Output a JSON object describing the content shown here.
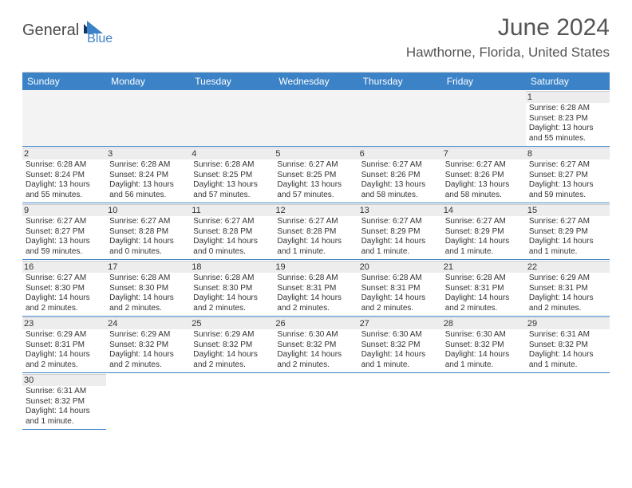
{
  "logo": {
    "main": "General",
    "sub": "Blue"
  },
  "title": "June 2024",
  "location": "Hawthorne, Florida, United States",
  "colors": {
    "header_bg": "#3b82c7",
    "header_text": "#ffffff",
    "daynum_bg": "#ededed",
    "cell_border": "#3b82c7",
    "text": "#333333",
    "title_text": "#555555",
    "logo_main": "#4a4a4a",
    "logo_sub": "#3b7fc4"
  },
  "day_names": [
    "Sunday",
    "Monday",
    "Tuesday",
    "Wednesday",
    "Thursday",
    "Friday",
    "Saturday"
  ],
  "weeks": [
    [
      null,
      null,
      null,
      null,
      null,
      null,
      {
        "n": "1",
        "sr": "Sunrise: 6:28 AM",
        "ss": "Sunset: 8:23 PM",
        "dl": "Daylight: 13 hours and 55 minutes."
      }
    ],
    [
      {
        "n": "2",
        "sr": "Sunrise: 6:28 AM",
        "ss": "Sunset: 8:24 PM",
        "dl": "Daylight: 13 hours and 55 minutes."
      },
      {
        "n": "3",
        "sr": "Sunrise: 6:28 AM",
        "ss": "Sunset: 8:24 PM",
        "dl": "Daylight: 13 hours and 56 minutes."
      },
      {
        "n": "4",
        "sr": "Sunrise: 6:28 AM",
        "ss": "Sunset: 8:25 PM",
        "dl": "Daylight: 13 hours and 57 minutes."
      },
      {
        "n": "5",
        "sr": "Sunrise: 6:27 AM",
        "ss": "Sunset: 8:25 PM",
        "dl": "Daylight: 13 hours and 57 minutes."
      },
      {
        "n": "6",
        "sr": "Sunrise: 6:27 AM",
        "ss": "Sunset: 8:26 PM",
        "dl": "Daylight: 13 hours and 58 minutes."
      },
      {
        "n": "7",
        "sr": "Sunrise: 6:27 AM",
        "ss": "Sunset: 8:26 PM",
        "dl": "Daylight: 13 hours and 58 minutes."
      },
      {
        "n": "8",
        "sr": "Sunrise: 6:27 AM",
        "ss": "Sunset: 8:27 PM",
        "dl": "Daylight: 13 hours and 59 minutes."
      }
    ],
    [
      {
        "n": "9",
        "sr": "Sunrise: 6:27 AM",
        "ss": "Sunset: 8:27 PM",
        "dl": "Daylight: 13 hours and 59 minutes."
      },
      {
        "n": "10",
        "sr": "Sunrise: 6:27 AM",
        "ss": "Sunset: 8:28 PM",
        "dl": "Daylight: 14 hours and 0 minutes."
      },
      {
        "n": "11",
        "sr": "Sunrise: 6:27 AM",
        "ss": "Sunset: 8:28 PM",
        "dl": "Daylight: 14 hours and 0 minutes."
      },
      {
        "n": "12",
        "sr": "Sunrise: 6:27 AM",
        "ss": "Sunset: 8:28 PM",
        "dl": "Daylight: 14 hours and 1 minute."
      },
      {
        "n": "13",
        "sr": "Sunrise: 6:27 AM",
        "ss": "Sunset: 8:29 PM",
        "dl": "Daylight: 14 hours and 1 minute."
      },
      {
        "n": "14",
        "sr": "Sunrise: 6:27 AM",
        "ss": "Sunset: 8:29 PM",
        "dl": "Daylight: 14 hours and 1 minute."
      },
      {
        "n": "15",
        "sr": "Sunrise: 6:27 AM",
        "ss": "Sunset: 8:29 PM",
        "dl": "Daylight: 14 hours and 1 minute."
      }
    ],
    [
      {
        "n": "16",
        "sr": "Sunrise: 6:27 AM",
        "ss": "Sunset: 8:30 PM",
        "dl": "Daylight: 14 hours and 2 minutes."
      },
      {
        "n": "17",
        "sr": "Sunrise: 6:28 AM",
        "ss": "Sunset: 8:30 PM",
        "dl": "Daylight: 14 hours and 2 minutes."
      },
      {
        "n": "18",
        "sr": "Sunrise: 6:28 AM",
        "ss": "Sunset: 8:30 PM",
        "dl": "Daylight: 14 hours and 2 minutes."
      },
      {
        "n": "19",
        "sr": "Sunrise: 6:28 AM",
        "ss": "Sunset: 8:31 PM",
        "dl": "Daylight: 14 hours and 2 minutes."
      },
      {
        "n": "20",
        "sr": "Sunrise: 6:28 AM",
        "ss": "Sunset: 8:31 PM",
        "dl": "Daylight: 14 hours and 2 minutes."
      },
      {
        "n": "21",
        "sr": "Sunrise: 6:28 AM",
        "ss": "Sunset: 8:31 PM",
        "dl": "Daylight: 14 hours and 2 minutes."
      },
      {
        "n": "22",
        "sr": "Sunrise: 6:29 AM",
        "ss": "Sunset: 8:31 PM",
        "dl": "Daylight: 14 hours and 2 minutes."
      }
    ],
    [
      {
        "n": "23",
        "sr": "Sunrise: 6:29 AM",
        "ss": "Sunset: 8:31 PM",
        "dl": "Daylight: 14 hours and 2 minutes."
      },
      {
        "n": "24",
        "sr": "Sunrise: 6:29 AM",
        "ss": "Sunset: 8:32 PM",
        "dl": "Daylight: 14 hours and 2 minutes."
      },
      {
        "n": "25",
        "sr": "Sunrise: 6:29 AM",
        "ss": "Sunset: 8:32 PM",
        "dl": "Daylight: 14 hours and 2 minutes."
      },
      {
        "n": "26",
        "sr": "Sunrise: 6:30 AM",
        "ss": "Sunset: 8:32 PM",
        "dl": "Daylight: 14 hours and 2 minutes."
      },
      {
        "n": "27",
        "sr": "Sunrise: 6:30 AM",
        "ss": "Sunset: 8:32 PM",
        "dl": "Daylight: 14 hours and 1 minute."
      },
      {
        "n": "28",
        "sr": "Sunrise: 6:30 AM",
        "ss": "Sunset: 8:32 PM",
        "dl": "Daylight: 14 hours and 1 minute."
      },
      {
        "n": "29",
        "sr": "Sunrise: 6:31 AM",
        "ss": "Sunset: 8:32 PM",
        "dl": "Daylight: 14 hours and 1 minute."
      }
    ],
    [
      {
        "n": "30",
        "sr": "Sunrise: 6:31 AM",
        "ss": "Sunset: 8:32 PM",
        "dl": "Daylight: 14 hours and 1 minute."
      },
      null,
      null,
      null,
      null,
      null,
      null
    ]
  ]
}
